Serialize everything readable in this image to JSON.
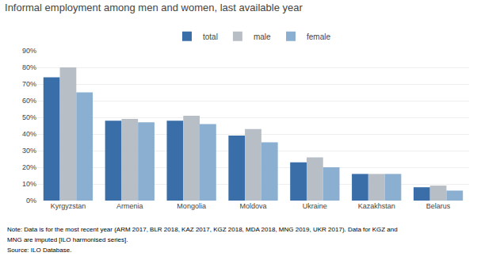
{
  "chart_data": {
    "type": "bar",
    "title": "Informal employment among men and women, last available year",
    "categories": [
      "Kyrgyzstan",
      "Armenia",
      "Mongolia",
      "Moldova",
      "Ukraine",
      "Kazakhstan",
      "Belarus"
    ],
    "series": [
      {
        "name": "total",
        "color": "#3a6ea8",
        "values": [
          74,
          48,
          48,
          39,
          23,
          16,
          8
        ]
      },
      {
        "name": "male",
        "color": "#b8bec5",
        "values": [
          80,
          49,
          51,
          43,
          26,
          16,
          9
        ]
      },
      {
        "name": "female",
        "color": "#8aafd1",
        "values": [
          65,
          47,
          46,
          35,
          20,
          16,
          6
        ]
      }
    ],
    "ylim": [
      0,
      90
    ],
    "yticks": [
      {
        "value": 0,
        "label": "0%"
      },
      {
        "value": 10,
        "label": "10%"
      },
      {
        "value": 20,
        "label": "20%"
      },
      {
        "value": 30,
        "label": "30%"
      },
      {
        "value": 40,
        "label": "40%"
      },
      {
        "value": 50,
        "label": "50%"
      },
      {
        "value": 60,
        "label": "60%"
      },
      {
        "value": 70,
        "label": "70%"
      },
      {
        "value": 80,
        "label": "80%"
      },
      {
        "value": 90,
        "label": "90%"
      }
    ],
    "grid": true,
    "legend": "top",
    "annotations": [
      "Note: Data is for the most recent year (ARM 2017, BLR 2018, KAZ 2017, KGZ 2018, MDA 2018, MNG 2019, UKR 2017). Data for KGZ and",
      "MNG are imputed [ILO harmonised series].",
      "Source: ILO Database."
    ]
  }
}
